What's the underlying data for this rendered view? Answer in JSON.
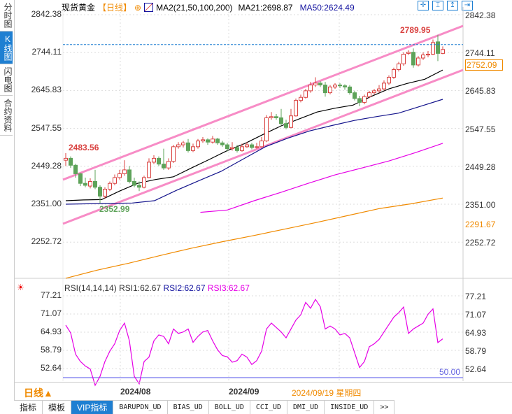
{
  "left_tabs": [
    {
      "label": "分时图",
      "active": false
    },
    {
      "label": "K线图",
      "active": true
    },
    {
      "label": "闪电图",
      "active": false
    },
    {
      "label": "合约资料",
      "active": false
    }
  ],
  "header": {
    "instrument": "现货黄金",
    "period": "【日线】",
    "ma_label": "MA2(21,50,100,200)",
    "ma21": "MA21:2698.87",
    "ma50": "MA50:2624.49"
  },
  "toolbar_icons": [
    "crosshair-icon",
    "range-icon",
    "cursor-icon",
    "exit-icon"
  ],
  "colors": {
    "up": "#d9413f",
    "down": "#5ea35a",
    "ma21": "#000000",
    "ma50": "#14148c",
    "ma100": "#e600e6",
    "ma200": "#f08a00",
    "channel": "#f78cc6",
    "rsi": "#e600e6",
    "price_line": "#1e7fd2",
    "accent": "#1e7fd2"
  },
  "main_axis": {
    "ticks": [
      "2842.38",
      "2744.11",
      "2645.83",
      "2547.55",
      "2449.28",
      "2351.00",
      "2252.72"
    ],
    "tick_values": [
      2842.38,
      2744.11,
      2645.83,
      2547.55,
      2449.28,
      2351.0,
      2252.72
    ],
    "current_price": "2752.09",
    "extra_label": "2291.67",
    "extra_value": 2291.67,
    "high_label": "2789.95",
    "left_high_label": "2483.56",
    "low_label": "2352.99"
  },
  "chart_data": {
    "type": "candlestick",
    "ylim": [
      2162,
      2862
    ],
    "candles": [
      [
        2465,
        2483.56,
        2450,
        2470
      ],
      [
        2470,
        2475,
        2445,
        2452
      ],
      [
        2452,
        2456,
        2420,
        2430
      ],
      [
        2430,
        2432,
        2398,
        2405
      ],
      [
        2405,
        2420,
        2395,
        2400
      ],
      [
        2398,
        2418,
        2392,
        2410
      ],
      [
        2410,
        2440,
        2390,
        2395
      ],
      [
        2395,
        2400,
        2352.99,
        2372
      ],
      [
        2372,
        2395,
        2365,
        2390
      ],
      [
        2390,
        2410,
        2385,
        2405
      ],
      [
        2405,
        2428,
        2400,
        2420
      ],
      [
        2420,
        2440,
        2415,
        2430
      ],
      [
        2430,
        2465,
        2425,
        2440
      ],
      [
        2440,
        2450,
        2405,
        2410
      ],
      [
        2410,
        2420,
        2395,
        2400
      ],
      [
        2400,
        2410,
        2385,
        2395
      ],
      [
        2395,
        2425,
        2392,
        2420
      ],
      [
        2420,
        2470,
        2418,
        2460
      ],
      [
        2460,
        2478,
        2455,
        2470
      ],
      [
        2470,
        2475,
        2450,
        2455
      ],
      [
        2455,
        2495,
        2440,
        2445
      ],
      [
        2445,
        2470,
        2440,
        2462
      ],
      [
        2462,
        2505,
        2458,
        2500
      ],
      [
        2500,
        2512,
        2495,
        2505
      ],
      [
        2505,
        2515,
        2498,
        2510
      ],
      [
        2510,
        2520,
        2485,
        2490
      ],
      [
        2490,
        2508,
        2486,
        2500
      ],
      [
        2500,
        2520,
        2495,
        2515
      ],
      [
        2515,
        2525,
        2510,
        2518
      ],
      [
        2518,
        2522,
        2505,
        2512
      ],
      [
        2512,
        2528,
        2508,
        2520
      ],
      [
        2520,
        2523,
        2505,
        2510
      ],
      [
        2510,
        2515,
        2500,
        2505
      ],
      [
        2505,
        2510,
        2488,
        2495
      ],
      [
        2495,
        2512,
        2490,
        2498
      ],
      [
        2498,
        2505,
        2485,
        2490
      ],
      [
        2490,
        2508,
        2487,
        2500
      ],
      [
        2500,
        2512,
        2497,
        2505
      ],
      [
        2505,
        2510,
        2493,
        2498
      ],
      [
        2498,
        2510,
        2495,
        2500
      ],
      [
        2500,
        2525,
        2498,
        2515
      ],
      [
        2515,
        2582,
        2512,
        2575
      ],
      [
        2575,
        2590,
        2570,
        2578
      ],
      [
        2578,
        2585,
        2570,
        2575
      ],
      [
        2575,
        2598,
        2555,
        2560
      ],
      [
        2560,
        2570,
        2545,
        2550
      ],
      [
        2550,
        2598,
        2548,
        2580
      ],
      [
        2580,
        2625,
        2578,
        2620
      ],
      [
        2620,
        2635,
        2615,
        2628
      ],
      [
        2628,
        2650,
        2625,
        2645
      ],
      [
        2645,
        2668,
        2640,
        2660
      ],
      [
        2660,
        2680,
        2655,
        2665
      ],
      [
        2665,
        2670,
        2655,
        2660
      ],
      [
        2660,
        2668,
        2630,
        2640
      ],
      [
        2640,
        2660,
        2636,
        2655
      ],
      [
        2655,
        2665,
        2650,
        2660
      ],
      [
        2660,
        2665,
        2652,
        2658
      ],
      [
        2658,
        2662,
        2648,
        2655
      ],
      [
        2655,
        2660,
        2635,
        2640
      ],
      [
        2640,
        2645,
        2620,
        2625
      ],
      [
        2625,
        2632,
        2605,
        2615
      ],
      [
        2615,
        2635,
        2610,
        2630
      ],
      [
        2630,
        2645,
        2626,
        2640
      ],
      [
        2640,
        2650,
        2635,
        2645
      ],
      [
        2645,
        2660,
        2640,
        2650
      ],
      [
        2650,
        2672,
        2646,
        2665
      ],
      [
        2665,
        2685,
        2660,
        2680
      ],
      [
        2680,
        2705,
        2676,
        2700
      ],
      [
        2700,
        2720,
        2695,
        2715
      ],
      [
        2715,
        2745,
        2710,
        2740
      ],
      [
        2742,
        2750,
        2738,
        2745
      ],
      [
        2745,
        2755,
        2705,
        2712
      ],
      [
        2712,
        2735,
        2708,
        2730
      ],
      [
        2730,
        2745,
        2725,
        2738
      ],
      [
        2738,
        2748,
        2732,
        2740
      ],
      [
        2740,
        2778,
        2738,
        2770
      ],
      [
        2772,
        2789.95,
        2722,
        2742
      ],
      [
        2742,
        2760,
        2740,
        2752.09
      ]
    ],
    "ma21": [
      2360,
      2362,
      2363,
      2385,
      2405,
      2415,
      2422,
      2445,
      2467,
      2490,
      2509,
      2532,
      2554,
      2572,
      2590,
      2600,
      2608,
      2630,
      2650,
      2664,
      2675,
      2699
    ],
    "ma50": [
      2351,
      2352,
      2353,
      2354,
      2360,
      2387,
      2412,
      2436,
      2468,
      2500,
      2522,
      2541,
      2555,
      2568,
      2578,
      2587,
      2605,
      2623
    ],
    "ma100": [
      null,
      null,
      null,
      null,
      null,
      2330,
      2336,
      2360,
      2382,
      2405,
      2427,
      2445,
      2463,
      2485,
      2509
    ],
    "ma200": [
      2159,
      2180,
      2198,
      2218,
      2237,
      2254,
      2270,
      2287,
      2304,
      2322,
      2340,
      2352,
      2367
    ],
    "channel": {
      "upper": [
        2414.6,
        2813.4
      ],
      "lower": [
        2300.2,
        2699.2
      ]
    },
    "x_ticks": [
      "2024/08",
      "2024/09"
    ]
  },
  "rsi": {
    "label": "RSI(14,14,14)",
    "rsi1": "RSI1:62.67",
    "rsi2": "RSI2:62.67",
    "rsi3": "RSI3:62.67",
    "ticks": [
      "77.21",
      "71.07",
      "64.93",
      "58.79",
      "52.64"
    ],
    "tick_values": [
      77.21,
      71.07,
      64.93,
      58.79,
      52.64
    ],
    "ref_label": "50.00",
    "ref_value": 50,
    "values": [
      67.3,
      64.7,
      57.5,
      55,
      53.5,
      52.5,
      47,
      50,
      55,
      58.5,
      61,
      65.5,
      68,
      62,
      50,
      47.5,
      55,
      56.5,
      62,
      64,
      63.5,
      61,
      66,
      64.5,
      65,
      66,
      61.5,
      63.5,
      65,
      65.5,
      62,
      59,
      57,
      56.6,
      54.8,
      55.3,
      57.5,
      56.5,
      54,
      55.3,
      58.5,
      66,
      68,
      66.5,
      65,
      63,
      66,
      69,
      70.8,
      75,
      73,
      76,
      73.5,
      66,
      67,
      66,
      64,
      64.5,
      63,
      58,
      53,
      55,
      60,
      61,
      62.5,
      65,
      67.5,
      70,
      71.5,
      73.4,
      64.5,
      66,
      67,
      68,
      71,
      72.8,
      61.4,
      62.67
    ]
  },
  "date_bar": {
    "period": "日线▲",
    "cursor_date": "2024/09/19 星期四"
  },
  "bottom_tabs": [
    {
      "label": "指标",
      "active": false
    },
    {
      "label": "模板",
      "active": false
    },
    {
      "label": "VIP指标",
      "active": true
    },
    {
      "label": "BARUPDN_UD"
    },
    {
      "label": "BIAS_UD"
    },
    {
      "label": "BOLL_UD"
    },
    {
      "label": "CCI_UD"
    },
    {
      "label": "DMI_UD"
    },
    {
      "label": "INSIDE_UD"
    },
    {
      "label": ">>"
    }
  ]
}
